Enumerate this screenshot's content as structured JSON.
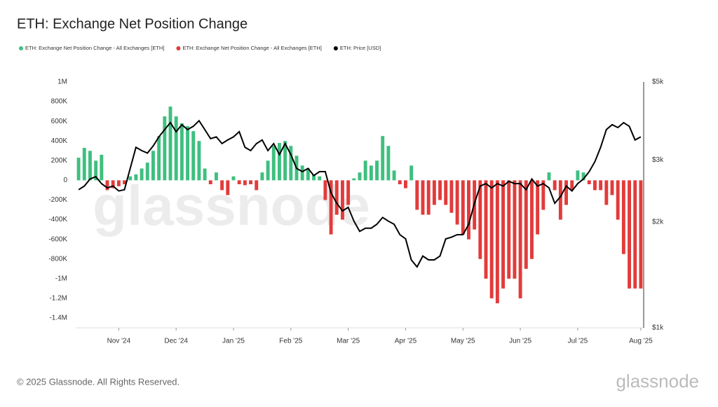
{
  "chart_data": {
    "type": "bar",
    "title": "ETH: Exchange Net Position Change",
    "categories": [
      null,
      null,
      null,
      null,
      null,
      null,
      null,
      "Nov '24",
      null,
      null,
      null,
      null,
      null,
      null,
      null,
      null,
      null,
      "Dec '24",
      null,
      null,
      null,
      null,
      null,
      null,
      null,
      null,
      null,
      "Jan '25",
      null,
      null,
      null,
      null,
      null,
      null,
      null,
      null,
      null,
      "Feb '25",
      null,
      null,
      null,
      null,
      null,
      null,
      null,
      null,
      null,
      "Mar '25",
      null,
      null,
      null,
      null,
      null,
      null,
      null,
      null,
      null,
      "Apr '25",
      null,
      null,
      null,
      null,
      null,
      null,
      null,
      null,
      null,
      "May '25",
      null,
      null,
      null,
      null,
      null,
      null,
      null,
      null,
      null,
      "Jun '25",
      null,
      null,
      null,
      null,
      null,
      null,
      null,
      null,
      null,
      "Jul '25",
      null,
      null,
      null,
      null,
      null,
      null,
      null,
      null,
      null,
      null,
      "Aug '25"
    ],
    "series": [
      {
        "name": "ETH: Exchange Net Position Change - All Exchanges [ETH]",
        "color": "#3fbf7f",
        "values": [
          230000,
          330000,
          300000,
          200000,
          260000,
          null,
          null,
          null,
          null,
          40000,
          60000,
          120000,
          180000,
          300000,
          450000,
          650000,
          750000,
          650000,
          580000,
          550000,
          500000,
          400000,
          120000,
          null,
          80000,
          null,
          null,
          40000,
          null,
          null,
          null,
          null,
          80000,
          200000,
          350000,
          380000,
          400000,
          350000,
          250000,
          150000,
          120000,
          60000,
          40000,
          null,
          null,
          null,
          null,
          null,
          20000,
          80000,
          200000,
          150000,
          200000,
          450000,
          350000,
          100000,
          null,
          null,
          150000,
          null,
          null,
          null,
          null,
          null,
          null,
          null,
          null,
          null,
          null,
          null,
          null,
          null,
          null,
          null,
          null,
          null,
          null,
          null,
          null,
          null,
          null,
          null,
          80000,
          null,
          null,
          null,
          null,
          100000,
          80000,
          null,
          null,
          null,
          null,
          null,
          null,
          null,
          null,
          null,
          null
        ]
      },
      {
        "name": "ETH: Exchange Net Position Change - All Exchanges [ETH]",
        "color": "#e23b3b",
        "values": [
          null,
          null,
          null,
          null,
          null,
          -100000,
          -80000,
          -60000,
          -40000,
          null,
          null,
          null,
          null,
          null,
          null,
          null,
          null,
          null,
          null,
          null,
          null,
          null,
          null,
          -40000,
          null,
          -100000,
          -150000,
          null,
          -40000,
          -50000,
          -40000,
          -100000,
          null,
          null,
          null,
          null,
          null,
          null,
          null,
          null,
          null,
          null,
          null,
          -200000,
          -550000,
          -350000,
          -400000,
          -250000,
          null,
          null,
          null,
          null,
          null,
          null,
          null,
          null,
          -40000,
          -80000,
          null,
          -300000,
          -350000,
          -350000,
          -250000,
          -200000,
          -250000,
          -330000,
          -450000,
          -550000,
          -600000,
          -500000,
          -800000,
          -1000000,
          -1200000,
          -1250000,
          -1100000,
          -1000000,
          -1000000,
          -1200000,
          -900000,
          -800000,
          -550000,
          -300000,
          null,
          -100000,
          -400000,
          -250000,
          -100000,
          null,
          null,
          -40000,
          -100000,
          -100000,
          -250000,
          -150000,
          -400000,
          -750000,
          -1100000,
          -1100000,
          -1100000
        ]
      },
      {
        "name": "ETH: Price [USD]",
        "color": "#000000",
        "axis": "y2",
        "type": "line",
        "values": [
          2470,
          2530,
          2650,
          2690,
          2570,
          2500,
          2530,
          2450,
          2470,
          2840,
          3260,
          3190,
          3140,
          3290,
          3490,
          3660,
          3830,
          3610,
          3780,
          3660,
          3740,
          3880,
          3660,
          3450,
          3490,
          3340,
          3420,
          3490,
          3610,
          3260,
          3190,
          3340,
          3420,
          3190,
          3340,
          3110,
          3340,
          3110,
          2840,
          2780,
          2840,
          2710,
          2780,
          2780,
          2420,
          2260,
          2150,
          2200,
          2010,
          1880,
          1920,
          1920,
          1970,
          2060,
          2010,
          1970,
          1840,
          1790,
          1560,
          1490,
          1600,
          1560,
          1560,
          1600,
          1790,
          1810,
          1840,
          1840,
          1970,
          2260,
          2530,
          2570,
          2500,
          2570,
          2530,
          2610,
          2570,
          2570,
          2470,
          2650,
          2530,
          2570,
          2500,
          2260,
          2360,
          2530,
          2450,
          2570,
          2650,
          2780,
          2970,
          3260,
          3660,
          3780,
          3710,
          3830,
          3740,
          3420,
          3490
        ]
      }
    ],
    "ylim": [
      -1500000,
      1000000
    ],
    "yticks": [
      {
        "value": 1000000,
        "label": "1M"
      },
      {
        "value": 800000,
        "label": "800K"
      },
      {
        "value": 600000,
        "label": "600K"
      },
      {
        "value": 400000,
        "label": "400K"
      },
      {
        "value": 200000,
        "label": "200K"
      },
      0,
      {
        "value": -200000,
        "label": "-200K"
      },
      {
        "value": -400000,
        "label": "-400K"
      },
      {
        "value": -600000,
        "label": "-600K"
      },
      {
        "value": -800000,
        "label": "-800K"
      },
      {
        "value": -1000000,
        "label": "-1M"
      },
      {
        "value": -1200000,
        "label": "-1.2M"
      },
      {
        "value": -1400000,
        "label": "-1.4M"
      }
    ],
    "y2lim": [
      1000,
      5000
    ],
    "y2ticks": [
      {
        "value": 5000,
        "label": "$5k"
      },
      {
        "value": 3000,
        "label": "$3k"
      },
      {
        "value": 2000,
        "label": "$2k"
      },
      {
        "value": 1000,
        "label": "$1k"
      }
    ],
    "y2_log": true,
    "grid": false,
    "legend": "top-left"
  },
  "footer": "© 2025 Glassnode. All Rights Reserved.",
  "watermark": "glassnode"
}
